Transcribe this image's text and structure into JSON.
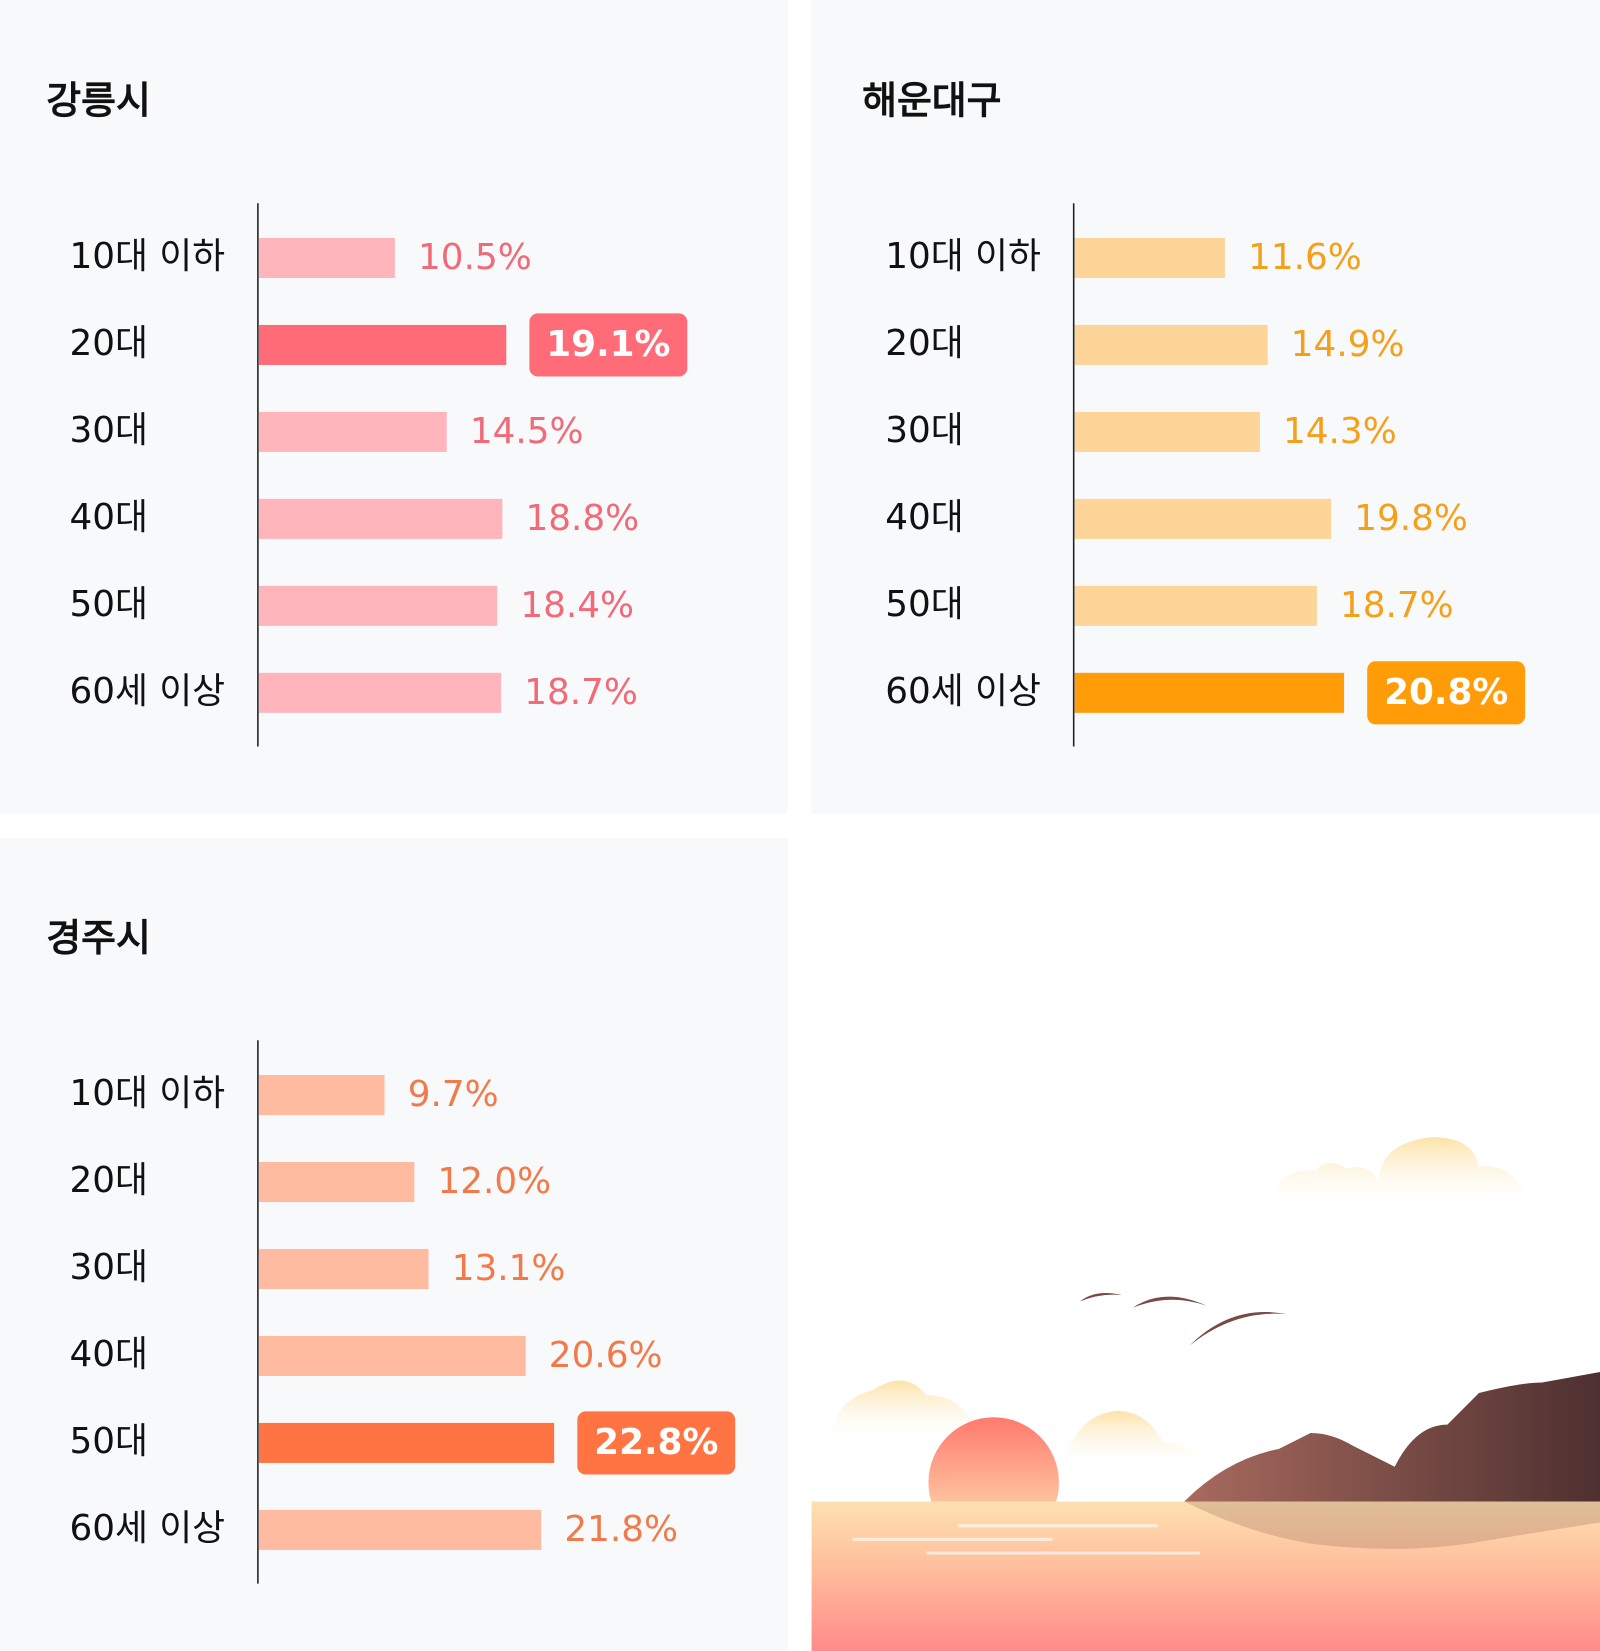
{
  "chart_data": [
    {
      "type": "bar",
      "title": "강릉시",
      "categories": [
        "10대 이하",
        "20대",
        "30대",
        "40대",
        "50대",
        "60세 이상"
      ],
      "values": [
        10.5,
        19.1,
        14.5,
        18.8,
        18.4,
        18.7
      ],
      "value_labels": [
        "10.5%",
        "19.1%",
        "14.5%",
        "18.8%",
        "18.4%",
        "18.7%"
      ],
      "color": "#ffb5bb",
      "highlight": 1,
      "highlight_color": "#ff6b77",
      "label_color": "#f06a78"
    },
    {
      "type": "bar",
      "title": "해운대구",
      "categories": [
        "10대 이하",
        "20대",
        "30대",
        "40대",
        "50대",
        "60세 이상"
      ],
      "values": [
        11.6,
        14.9,
        14.3,
        19.8,
        18.7,
        20.8
      ],
      "value_labels": [
        "11.6%",
        "14.9%",
        "14.3%",
        "19.8%",
        "18.7%",
        "20.8%"
      ],
      "color": "#fdd598",
      "highlight": 5,
      "highlight_color": "#ff9c07",
      "label_color": "#f5a01a"
    },
    {
      "type": "bar",
      "title": "경주시",
      "categories": [
        "10대 이하",
        "20대",
        "30대",
        "40대",
        "50대",
        "60세 이상"
      ],
      "values": [
        9.7,
        12.0,
        13.1,
        20.6,
        22.8,
        21.8
      ],
      "value_labels": [
        "9.7%",
        "12.0%",
        "13.1%",
        "20.6%",
        "22.8%",
        "21.8%"
      ],
      "color": "#ffbba0",
      "highlight": 4,
      "highlight_color": "#ff7442",
      "label_color": "#f27a4a"
    }
  ]
}
